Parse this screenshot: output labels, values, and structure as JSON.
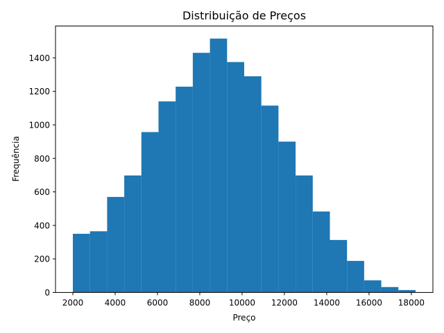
{
  "chart_data": {
    "type": "bar",
    "title": "Distribuição de Preços",
    "xlabel": "Preço",
    "ylabel": "Frequência",
    "color": "#1f77b4",
    "xlim": [
      1180,
      19020
    ],
    "ylim": [
      0,
      1590
    ],
    "bins": [
      {
        "start": 2000,
        "end": 2810,
        "count": 350
      },
      {
        "start": 2810,
        "end": 3620,
        "count": 365
      },
      {
        "start": 3620,
        "end": 4430,
        "count": 570
      },
      {
        "start": 4430,
        "end": 5240,
        "count": 698
      },
      {
        "start": 5240,
        "end": 6050,
        "count": 957
      },
      {
        "start": 6050,
        "end": 6860,
        "count": 1140
      },
      {
        "start": 6860,
        "end": 7670,
        "count": 1228
      },
      {
        "start": 7670,
        "end": 8480,
        "count": 1430
      },
      {
        "start": 8480,
        "end": 9290,
        "count": 1515
      },
      {
        "start": 9290,
        "end": 10100,
        "count": 1375
      },
      {
        "start": 10100,
        "end": 10910,
        "count": 1290
      },
      {
        "start": 10910,
        "end": 11720,
        "count": 1115
      },
      {
        "start": 11720,
        "end": 12530,
        "count": 900
      },
      {
        "start": 12530,
        "end": 13340,
        "count": 698
      },
      {
        "start": 13340,
        "end": 14150,
        "count": 483
      },
      {
        "start": 14150,
        "end": 14960,
        "count": 313
      },
      {
        "start": 14960,
        "end": 15770,
        "count": 188
      },
      {
        "start": 15770,
        "end": 16580,
        "count": 72
      },
      {
        "start": 16580,
        "end": 17390,
        "count": 32
      },
      {
        "start": 17390,
        "end": 18200,
        "count": 14
      }
    ],
    "x_ticks": [
      "2000",
      "4000",
      "6000",
      "8000",
      "10000",
      "12000",
      "14000",
      "16000",
      "18000"
    ],
    "y_ticks": [
      "0",
      "200",
      "400",
      "600",
      "800",
      "1000",
      "1200",
      "1400"
    ],
    "grid": false,
    "legend": "none"
  }
}
